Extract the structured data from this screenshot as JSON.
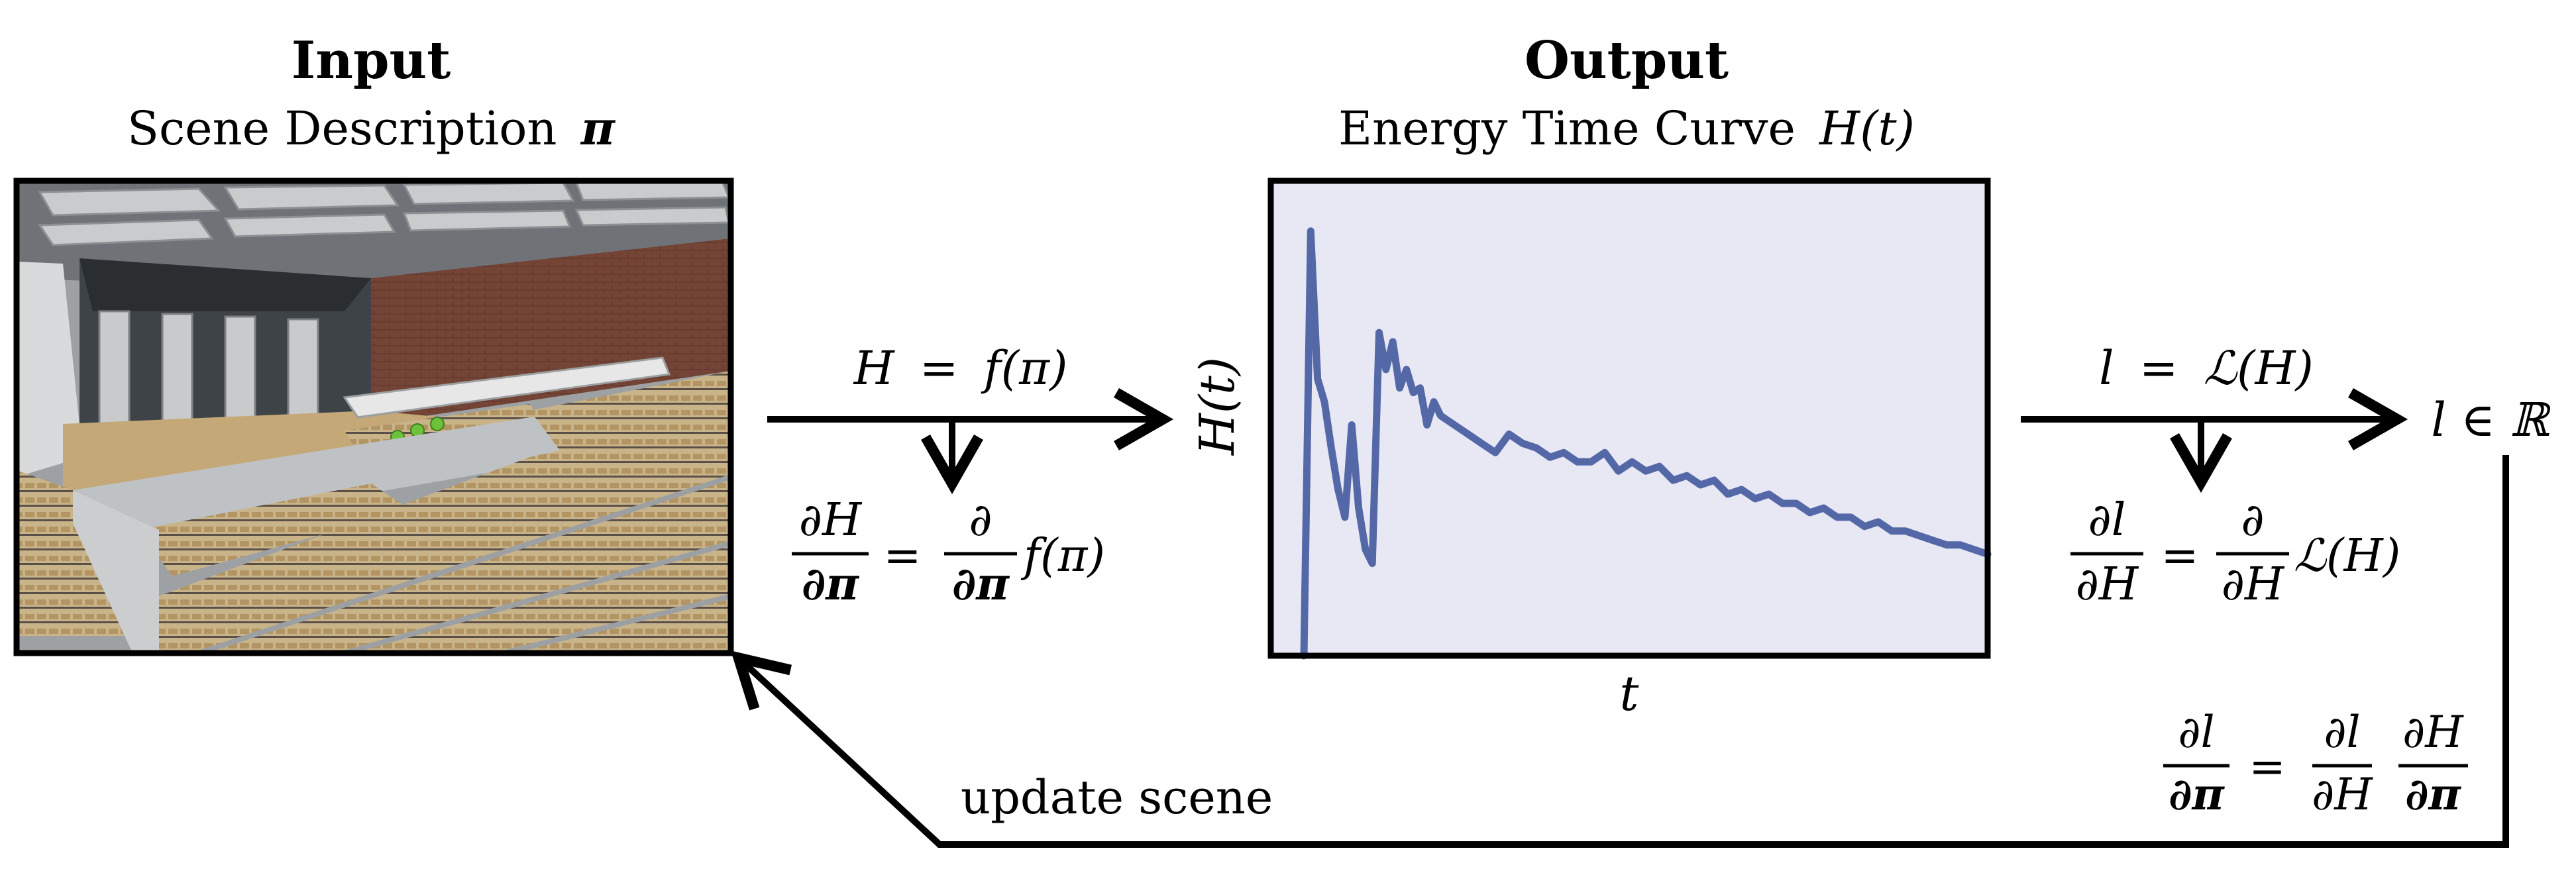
{
  "input": {
    "heading": "Input",
    "subtitle_text": "Scene Description",
    "symbol": "π"
  },
  "output": {
    "heading": "Output",
    "subtitle_text": "Energy Time Curve",
    "subtitle_math": "H(t)"
  },
  "forward_map": {
    "lhs": "H",
    "eq": "=",
    "rhs": "f(π)"
  },
  "forward_derivative": {
    "num_left": "∂H",
    "den_left": "∂π",
    "num_right": "∂",
    "den_right": "∂π",
    "tail": "f(π)"
  },
  "loss_map": {
    "lhs": "l",
    "eq": "=",
    "rhs": "ℒ(H)"
  },
  "loss_derivative": {
    "num_left": "∂l",
    "den_left": "∂H",
    "num_right": "∂",
    "den_right": "∂H",
    "tail": "ℒ(H)"
  },
  "loss_value": "l ∈ ℝ",
  "chain_rule": {
    "n1": "∂l",
    "d1": "∂π",
    "n2": "∂l",
    "d2": "∂H",
    "n3": "∂H",
    "d3": "∂π"
  },
  "feedback_label": "update scene",
  "plot": {
    "ylabel": "H(t)",
    "xlabel": "t",
    "background": "#e8e8f4",
    "line_color": "#5468a8"
  },
  "chart_data": {
    "type": "line",
    "title": "",
    "xlabel": "t",
    "ylabel": "H(t)",
    "grid": false,
    "xlim": [
      0,
      100
    ],
    "ylim": [
      0,
      100
    ],
    "series": [
      {
        "x": [
          0,
          1,
          2,
          3,
          4,
          5,
          6,
          7,
          8,
          9,
          10,
          11,
          12,
          13,
          14,
          15,
          16,
          17,
          18,
          19,
          20,
          22,
          24,
          26,
          28,
          30,
          32,
          34,
          36,
          38,
          40,
          42,
          44,
          46,
          48,
          50,
          52,
          54,
          56,
          58,
          60,
          62,
          64,
          66,
          68,
          70,
          72,
          74,
          76,
          78,
          80,
          82,
          84,
          86,
          88,
          90,
          92,
          94,
          96,
          98,
          100
        ],
        "values": [
          0,
          92,
          60,
          55,
          45,
          36,
          30,
          50,
          32,
          23,
          20,
          70,
          62,
          68,
          58,
          62,
          57,
          58,
          50,
          55,
          52,
          50,
          48,
          46,
          44,
          48,
          46,
          45,
          43,
          44,
          42,
          42,
          44,
          40,
          42,
          40,
          41,
          38,
          39,
          37,
          38,
          35,
          36,
          34,
          35,
          33,
          33,
          31,
          32,
          30,
          30,
          28,
          29,
          27,
          27,
          26,
          25,
          24,
          24,
          23,
          22
        ]
      }
    ]
  }
}
